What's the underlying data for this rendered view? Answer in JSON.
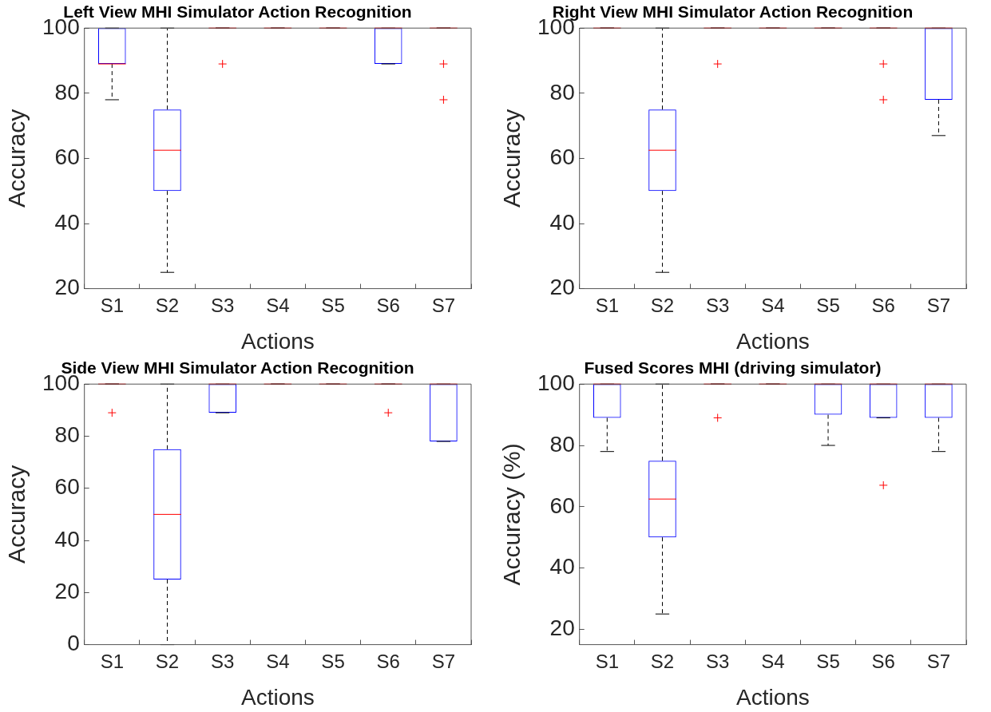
{
  "chart_data": [
    {
      "type": "box",
      "title": "Left View MHI Simulator Action Recognition",
      "xlabel": "Actions",
      "ylabel": "Accuracy",
      "categories": [
        "S1",
        "S2",
        "S3",
        "S4",
        "S5",
        "S6",
        "S7"
      ],
      "ylim": [
        20,
        100
      ],
      "yticks": [
        20,
        40,
        60,
        80,
        100
      ],
      "grid": false,
      "boxes": [
        {
          "low": 78,
          "q1": 89,
          "median": 89,
          "q3": 100,
          "high": 100
        },
        {
          "low": 25,
          "q1": 50,
          "median": 62.5,
          "q3": 75,
          "high": 100
        },
        {
          "low": 100,
          "q1": 100,
          "median": 100,
          "q3": 100,
          "high": 100,
          "outliers": [
            89
          ]
        },
        {
          "low": 100,
          "q1": 100,
          "median": 100,
          "q3": 100,
          "high": 100
        },
        {
          "low": 100,
          "q1": 100,
          "median": 100,
          "q3": 100,
          "high": 100
        },
        {
          "low": 89,
          "q1": 89,
          "median": 100,
          "q3": 100,
          "high": 100
        },
        {
          "low": 100,
          "q1": 100,
          "median": 100,
          "q3": 100,
          "high": 100,
          "outliers": [
            89,
            78
          ]
        }
      ]
    },
    {
      "type": "box",
      "title": "Right View MHI Simulator Action Recognition",
      "xlabel": "Actions",
      "ylabel": "Accuracy",
      "categories": [
        "S1",
        "S2",
        "S3",
        "S4",
        "S5",
        "S6",
        "S7"
      ],
      "ylim": [
        20,
        100
      ],
      "yticks": [
        20,
        40,
        60,
        80,
        100
      ],
      "grid": false,
      "boxes": [
        {
          "low": 100,
          "q1": 100,
          "median": 100,
          "q3": 100,
          "high": 100
        },
        {
          "low": 25,
          "q1": 50,
          "median": 62.5,
          "q3": 75,
          "high": 100
        },
        {
          "low": 100,
          "q1": 100,
          "median": 100,
          "q3": 100,
          "high": 100,
          "outliers": [
            89
          ]
        },
        {
          "low": 100,
          "q1": 100,
          "median": 100,
          "q3": 100,
          "high": 100
        },
        {
          "low": 100,
          "q1": 100,
          "median": 100,
          "q3": 100,
          "high": 100
        },
        {
          "low": 100,
          "q1": 100,
          "median": 100,
          "q3": 100,
          "high": 100,
          "outliers": [
            89,
            78
          ]
        },
        {
          "low": 67,
          "q1": 78,
          "median": 100,
          "q3": 100,
          "high": 100
        }
      ]
    },
    {
      "type": "box",
      "title": "Side View MHI Simulator Action Recognition",
      "xlabel": "Actions",
      "ylabel": "Accuracy",
      "categories": [
        "S1",
        "S2",
        "S3",
        "S4",
        "S5",
        "S6",
        "S7"
      ],
      "ylim": [
        0,
        100
      ],
      "yticks": [
        0,
        20,
        40,
        60,
        80,
        100
      ],
      "grid": false,
      "boxes": [
        {
          "low": 100,
          "q1": 100,
          "median": 100,
          "q3": 100,
          "high": 100,
          "outliers": [
            89
          ]
        },
        {
          "low": 0,
          "q1": 25,
          "median": 50,
          "q3": 75,
          "high": 100
        },
        {
          "low": 89,
          "q1": 89,
          "median": 100,
          "q3": 100,
          "high": 100
        },
        {
          "low": 100,
          "q1": 100,
          "median": 100,
          "q3": 100,
          "high": 100
        },
        {
          "low": 100,
          "q1": 100,
          "median": 100,
          "q3": 100,
          "high": 100
        },
        {
          "low": 100,
          "q1": 100,
          "median": 100,
          "q3": 100,
          "high": 100,
          "outliers": [
            89
          ]
        },
        {
          "low": 78,
          "q1": 78,
          "median": 100,
          "q3": 100,
          "high": 100
        }
      ]
    },
    {
      "type": "box",
      "title": "Fused Scores MHI (driving simulator)",
      "xlabel": "Actions",
      "ylabel": "Accuracy (%)",
      "categories": [
        "S1",
        "S2",
        "S3",
        "S4",
        "S5",
        "S6",
        "S7"
      ],
      "ylim": [
        15,
        100
      ],
      "yticks": [
        20,
        40,
        60,
        80,
        100
      ],
      "grid": false,
      "boxes": [
        {
          "low": 78,
          "q1": 89,
          "median": 100,
          "q3": 100,
          "high": 100
        },
        {
          "low": 25,
          "q1": 50,
          "median": 62.5,
          "q3": 75,
          "high": 100
        },
        {
          "low": 100,
          "q1": 100,
          "median": 100,
          "q3": 100,
          "high": 100,
          "outliers": [
            89
          ]
        },
        {
          "low": 100,
          "q1": 100,
          "median": 100,
          "q3": 100,
          "high": 100
        },
        {
          "low": 80,
          "q1": 90,
          "median": 100,
          "q3": 100,
          "high": 100
        },
        {
          "low": 89,
          "q1": 89,
          "median": 100,
          "q3": 100,
          "high": 100,
          "outliers": [
            67
          ]
        },
        {
          "low": 78,
          "q1": 89,
          "median": 100,
          "q3": 100,
          "high": 100
        }
      ]
    }
  ]
}
